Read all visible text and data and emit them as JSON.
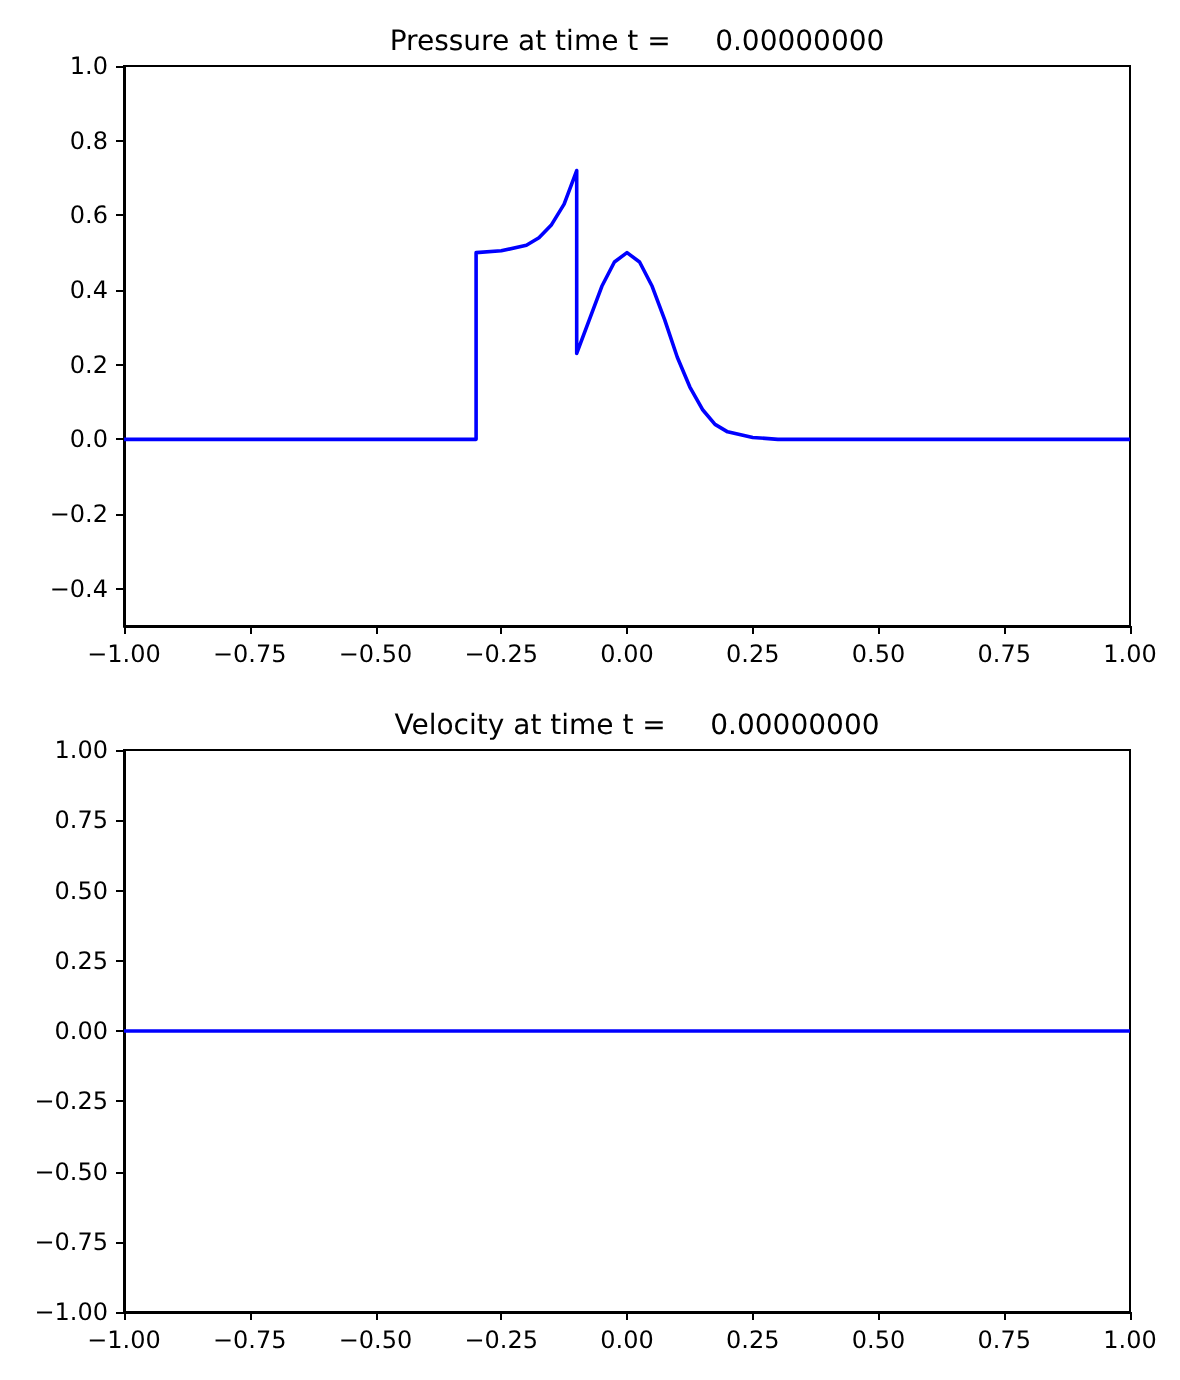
{
  "chart_data": [
    {
      "type": "line",
      "title": "Pressure at time t =     0.00000000",
      "grid": false,
      "marker": "none",
      "line_style": "solid",
      "series": [
        {
          "color": "#0000ff",
          "x": [
            -1,
            -0.3,
            -0.3,
            -0.25,
            -0.2,
            -0.175,
            -0.15,
            -0.125,
            -0.1,
            -0.1,
            -0.075,
            -0.05,
            -0.025,
            0,
            0.025,
            0.05,
            0.075,
            0.1,
            0.125,
            0.15,
            0.175,
            0.2,
            0.25,
            0.3,
            1
          ],
          "values": [
            0,
            0,
            0.5,
            0.505,
            0.52,
            0.54,
            0.575,
            0.63,
            0.72,
            0.23,
            0.32,
            0.41,
            0.475,
            0.5,
            0.475,
            0.41,
            0.32,
            0.22,
            0.14,
            0.08,
            0.04,
            0.02,
            0.005,
            0,
            0
          ]
        }
      ],
      "xlim": [
        -1,
        1
      ],
      "xticks": [
        {
          "value": -1,
          "label": "−1.00"
        },
        {
          "value": -0.75,
          "label": "−0.75"
        },
        {
          "value": -0.5,
          "label": "−0.50"
        },
        {
          "value": -0.25,
          "label": "−0.25"
        },
        {
          "value": 0,
          "label": "0.00"
        },
        {
          "value": 0.25,
          "label": "0.25"
        },
        {
          "value": 0.5,
          "label": "0.50"
        },
        {
          "value": 0.75,
          "label": "0.75"
        },
        {
          "value": 1,
          "label": "1.00"
        }
      ],
      "ylim": [
        -0.5,
        1
      ],
      "yticks": [
        {
          "value": -0.4,
          "label": "−0.4"
        },
        {
          "value": -0.2,
          "label": "−0.2"
        },
        {
          "value": 0,
          "label": "0.0"
        },
        {
          "value": 0.2,
          "label": "0.2"
        },
        {
          "value": 0.4,
          "label": "0.4"
        },
        {
          "value": 0.6,
          "label": "0.6"
        },
        {
          "value": 0.8,
          "label": "0.8"
        },
        {
          "value": 1,
          "label": "1.0"
        }
      ]
    },
    {
      "type": "line",
      "title": "Velocity at time t =     0.00000000",
      "grid": false,
      "marker": "none",
      "line_style": "solid",
      "series": [
        {
          "color": "#0000ff",
          "x": [
            -1,
            1
          ],
          "values": [
            0,
            0
          ]
        }
      ],
      "xlim": [
        -1,
        1
      ],
      "xticks": [
        {
          "value": -1,
          "label": "−1.00"
        },
        {
          "value": -0.75,
          "label": "−0.75"
        },
        {
          "value": -0.5,
          "label": "−0.50"
        },
        {
          "value": -0.25,
          "label": "−0.25"
        },
        {
          "value": 0,
          "label": "0.00"
        },
        {
          "value": 0.25,
          "label": "0.25"
        },
        {
          "value": 0.5,
          "label": "0.50"
        },
        {
          "value": 0.75,
          "label": "0.75"
        },
        {
          "value": 1,
          "label": "1.00"
        }
      ],
      "ylim": [
        -1,
        1
      ],
      "yticks": [
        {
          "value": -1,
          "label": "−1.00"
        },
        {
          "value": -0.75,
          "label": "−0.75"
        },
        {
          "value": -0.5,
          "label": "−0.50"
        },
        {
          "value": -0.25,
          "label": "−0.25"
        },
        {
          "value": 0,
          "label": "0.00"
        },
        {
          "value": 0.25,
          "label": "0.25"
        },
        {
          "value": 0.5,
          "label": "0.50"
        },
        {
          "value": 0.75,
          "label": "0.75"
        },
        {
          "value": 1,
          "label": "1.00"
        }
      ]
    }
  ]
}
